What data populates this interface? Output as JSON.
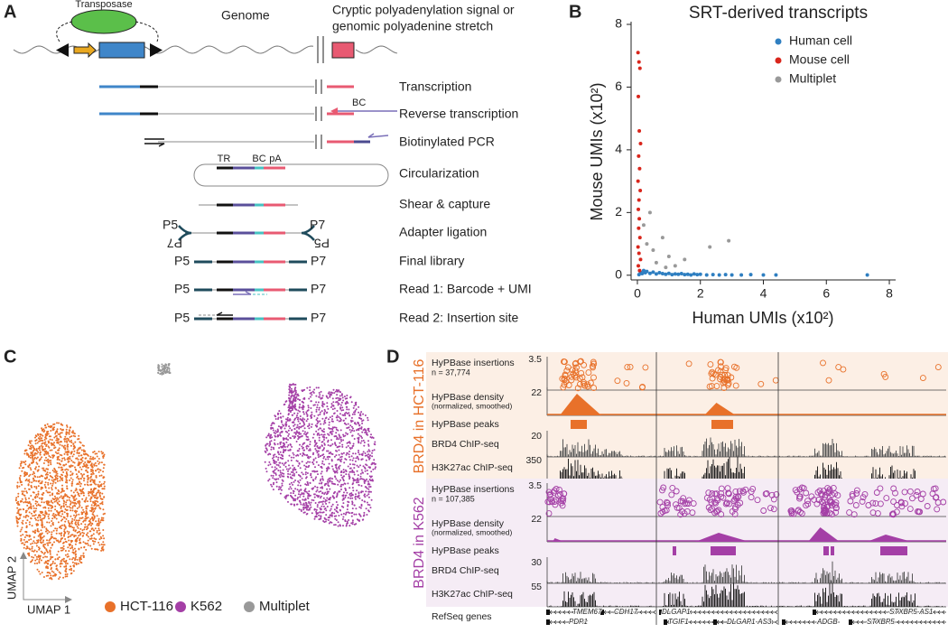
{
  "panel_labels": [
    "A",
    "B",
    "C",
    "D"
  ],
  "panel_a": {
    "transposase": "Transposase",
    "genome": "Genome",
    "cryptic": [
      "Cryptic polyadenylation signal or",
      "genomic polyadenine stretch"
    ],
    "bc": "BC",
    "circle_labels": [
      "TR",
      "BC",
      "pA"
    ],
    "adapters": {
      "left": "P5",
      "left_flipped": "P7",
      "right": "P7",
      "right_flipped": "P5"
    },
    "steps": [
      "Transcription",
      "Reverse transcription",
      "Biotinylated PCR",
      "Circularization",
      "Shear & capture",
      "Adapter ligation",
      "Final library",
      "Read 1: Barcode + UMI",
      "Read 2: Insertion site"
    ],
    "library_ends": [
      [
        "P5",
        "P7"
      ],
      [
        "P5",
        "P7"
      ],
      [
        "P5",
        "P7"
      ]
    ]
  },
  "chart_data": {
    "type": "scatter",
    "title": "SRT-derived transcripts",
    "x_label": "Human UMIs (x10²)",
    "y_label": "Mouse UMIs (x10²)",
    "xlim": [
      -0.2,
      8.2
    ],
    "ylim": [
      -0.15,
      8
    ],
    "xticks": [
      0,
      2,
      4,
      6,
      8
    ],
    "yticks": [
      0,
      2,
      4,
      6,
      8
    ],
    "legend": "upper right",
    "series": [
      {
        "name": "Human cell",
        "color": "#2f7fc1",
        "x": [
          0.05,
          0.1,
          0.15,
          0.2,
          0.25,
          0.3,
          0.4,
          0.5,
          0.6,
          0.7,
          0.8,
          0.9,
          1.0,
          1.1,
          1.2,
          1.3,
          1.4,
          1.5,
          1.6,
          1.7,
          1.8,
          1.9,
          2.0,
          2.2,
          2.4,
          2.6,
          2.8,
          3.0,
          3.3,
          3.6,
          4.0,
          4.4,
          7.3
        ],
        "values": [
          0.02,
          0.1,
          0.05,
          0.15,
          0.08,
          0.12,
          0.06,
          0.1,
          0.04,
          0.08,
          0.05,
          0.03,
          0.06,
          0.02,
          0.04,
          0.03,
          0.05,
          0.02,
          0.03,
          0.01,
          0.04,
          0.02,
          0.03,
          0.01,
          0.02,
          0.01,
          0.02,
          0.01,
          0.01,
          0.02,
          0.01,
          0.01,
          0.01
        ]
      },
      {
        "name": "Mouse cell",
        "color": "#d9261c",
        "x": [
          0.02,
          0.05,
          0.08,
          0.03,
          0.06,
          0.1,
          0.04,
          0.07,
          0.02,
          0.09,
          0.05,
          0.03,
          0.06,
          0.04,
          0.08,
          0.02,
          0.05,
          0.1,
          0.03,
          0.07
        ],
        "values": [
          7.1,
          6.8,
          6.6,
          5.7,
          4.6,
          4.2,
          3.8,
          3.4,
          3.0,
          2.7,
          2.4,
          2.1,
          1.8,
          1.5,
          1.2,
          0.9,
          0.7,
          0.5,
          0.3,
          0.15
        ]
      },
      {
        "name": "Multiplet",
        "color": "#999999",
        "x": [
          0.3,
          0.5,
          0.8,
          1.0,
          1.5,
          2.3,
          2.9,
          0.4,
          0.2,
          1.2,
          0.6,
          0.9
        ],
        "values": [
          1.0,
          0.8,
          1.2,
          0.6,
          0.5,
          0.9,
          1.1,
          2.0,
          1.6,
          0.3,
          0.4,
          0.25
        ]
      }
    ]
  },
  "panel_c": {
    "x_axis": "UMAP 1",
    "y_axis": "UMAP 2",
    "legend": [
      {
        "name": "HCT-116",
        "color": "#e8712a"
      },
      {
        "name": "K562",
        "color": "#a43fa6"
      },
      {
        "name": "Multiplet",
        "color": "#999999"
      }
    ]
  },
  "panel_d": {
    "groups": [
      {
        "name": "BRD4 in HCT-116",
        "color": "#e8712a",
        "n": "n = 37,774",
        "tracks": [
          "HyPBase insertions",
          "HyPBase density",
          "(normalized, smoothed)",
          "HyPBase peaks",
          "BRD4 ChIP-seq",
          "H3K27ac ChIP-seq"
        ],
        "scales": [
          3.5,
          22,
          20,
          350
        ]
      },
      {
        "name": "BRD4 in K562",
        "color": "#a43fa6",
        "n": "n = 107,385",
        "tracks": [
          "HyPBase insertions",
          "HyPBase density",
          "(normalized, smoothed)",
          "HyPBase peaks",
          "BRD4 ChIP-seq",
          "H3K27ac ChIP-seq"
        ],
        "scales": [
          3.5,
          22,
          30,
          55
        ]
      }
    ],
    "refseq": "RefSeq genes",
    "genes": [
      "TMEM67",
      "PDP1",
      "CDH17",
      "DLGAP1",
      "TGIF1",
      "DLGAP1-AS3",
      "ADGB",
      "STXBP5-AS1",
      "STXBP5"
    ]
  }
}
